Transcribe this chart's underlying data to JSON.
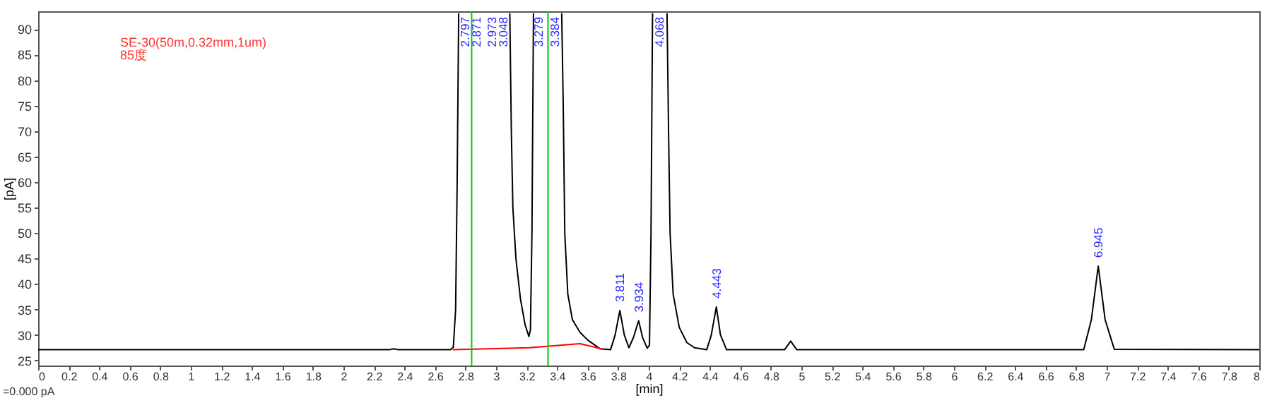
{
  "chart_data": {
    "type": "line",
    "xlabel": "[min]",
    "ylabel": "[pA]",
    "xlim": [
      0,
      8
    ],
    "ylim": [
      24,
      93.5
    ],
    "xticks": [
      0,
      0.2,
      0.4,
      0.6,
      0.8,
      1,
      1.2,
      1.4,
      1.6,
      1.8,
      2,
      2.2,
      2.4,
      2.6,
      2.8,
      3,
      3.2,
      3.4,
      3.6,
      3.8,
      4,
      4.2,
      4.4,
      4.6,
      4.8,
      5,
      5.2,
      5.4,
      5.6,
      5.8,
      6,
      6.2,
      6.4,
      6.6,
      6.8,
      7,
      7.2,
      7.4,
      7.6,
      7.8,
      8
    ],
    "yticks": [
      25,
      30,
      35,
      40,
      45,
      50,
      55,
      60,
      65,
      70,
      75,
      80,
      85,
      90
    ],
    "grid": false,
    "marker": "none",
    "line_style": "solid",
    "series": [
      {
        "color": "#000000",
        "x": [
          0,
          2.3,
          2.33,
          2.36,
          2.7,
          2.72,
          2.735,
          2.745,
          2.755,
          2.871,
          3.09,
          3.1,
          3.11,
          3.13,
          3.16,
          3.19,
          3.215,
          3.225,
          3.235,
          3.245,
          3.279,
          3.43,
          3.44,
          3.45,
          3.47,
          3.5,
          3.55,
          3.6,
          3.68,
          3.75,
          3.78,
          3.811,
          3.84,
          3.87,
          3.9,
          3.934,
          3.96,
          3.99,
          4.005,
          4.015,
          4.025,
          4.068,
          4.12,
          4.13,
          4.14,
          4.16,
          4.2,
          4.25,
          4.3,
          4.38,
          4.41,
          4.443,
          4.47,
          4.51,
          4.89,
          4.93,
          4.97,
          6.85,
          6.9,
          6.945,
          6.99,
          7.05,
          8
        ],
        "values": [
          27.1,
          27.1,
          27.3,
          27.1,
          27.1,
          27.6,
          35,
          60,
          93,
          null,
          93,
          70,
          55,
          45,
          37,
          32,
          29.7,
          31,
          50,
          93,
          null,
          93,
          75,
          50,
          38,
          33,
          30.5,
          29,
          27.3,
          27.1,
          30,
          34.8,
          30,
          27.5,
          29.5,
          32.8,
          29.5,
          27.4,
          28,
          50,
          93,
          null,
          93,
          70,
          50,
          38,
          31.5,
          28.5,
          27.5,
          27.1,
          30,
          35.5,
          30,
          27.1,
          27.1,
          28.8,
          27.1,
          27.1,
          33,
          43.5,
          33,
          27.2,
          27.1
        ]
      },
      {
        "color": "#ff0000",
        "x": [
          2.72,
          3.22,
          3.55,
          3.7
        ],
        "values": [
          27.1,
          27.5,
          28.3,
          27.2
        ]
      }
    ],
    "ref_lines": [
      {
        "axis": "x",
        "value": 2.84,
        "color": "#00cc00"
      },
      {
        "axis": "x",
        "value": 3.34,
        "color": "#00cc00"
      }
    ],
    "annotations": [
      "SE-30(50m,0.32mm,1um)",
      "85度",
      "=0.000 pA",
      "2.973",
      "4.068",
      {
        "text": "2.797",
        "x": 2.797
      },
      {
        "text": "2.871",
        "x": 2.871
      },
      {
        "text": "3.048",
        "x": 3.048
      },
      {
        "text": "3.279",
        "x": 3.279
      },
      {
        "text": "3.384",
        "x": 3.384
      },
      {
        "text": "3.811",
        "x": 3.811,
        "y": 34.8
      },
      {
        "text": "3.934",
        "x": 3.934,
        "y": 32.8
      },
      {
        "text": "4.443",
        "x": 4.443,
        "y": 35.5
      },
      {
        "text": "6.945",
        "x": 6.945,
        "y": 43.5
      }
    ]
  }
}
